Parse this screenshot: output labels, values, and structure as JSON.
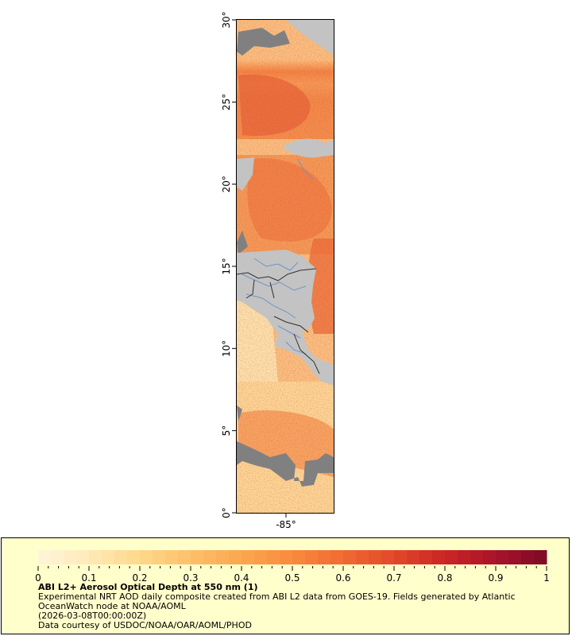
{
  "map": {
    "lat_ticks": [
      "0°",
      "5°",
      "10°",
      "15°",
      "20°",
      "25°",
      "30°"
    ],
    "lon_ticks": [
      "-85°"
    ],
    "colors": {
      "land": "#c3c3c3",
      "nodata": "#808080",
      "rivers": "#6f93c6",
      "borders": "#303030",
      "coast": "#7a7a7a"
    }
  },
  "colorbar": {
    "labels": [
      "0",
      "0.1",
      "0.2",
      "0.3",
      "0.4",
      "0.5",
      "0.6",
      "0.7",
      "0.8",
      "0.9",
      "1"
    ],
    "range": [
      0,
      1
    ],
    "colors": [
      "#fff5da",
      "#ffe9b8",
      "#ffd88a",
      "#fdc06a",
      "#fca74f",
      "#f98a3f",
      "#f06a32",
      "#e2482a",
      "#cc2525",
      "#a8132c",
      "#7d0a25"
    ]
  },
  "caption": {
    "title": "ABI L2+ Aerosol Optical Depth at 550 nm (1)",
    "line1": "Experimental NRT AOD daily composite created from ABI L2 data from GOES-19. Fields generated by Atlantic",
    "line2": "OceanWatch node at NOAA/AOML",
    "line3": "(2026-03-08T00:00:00Z)",
    "line4": "Data courtesy of USDOC/NOAA/OAR/AOML/PHOD"
  }
}
